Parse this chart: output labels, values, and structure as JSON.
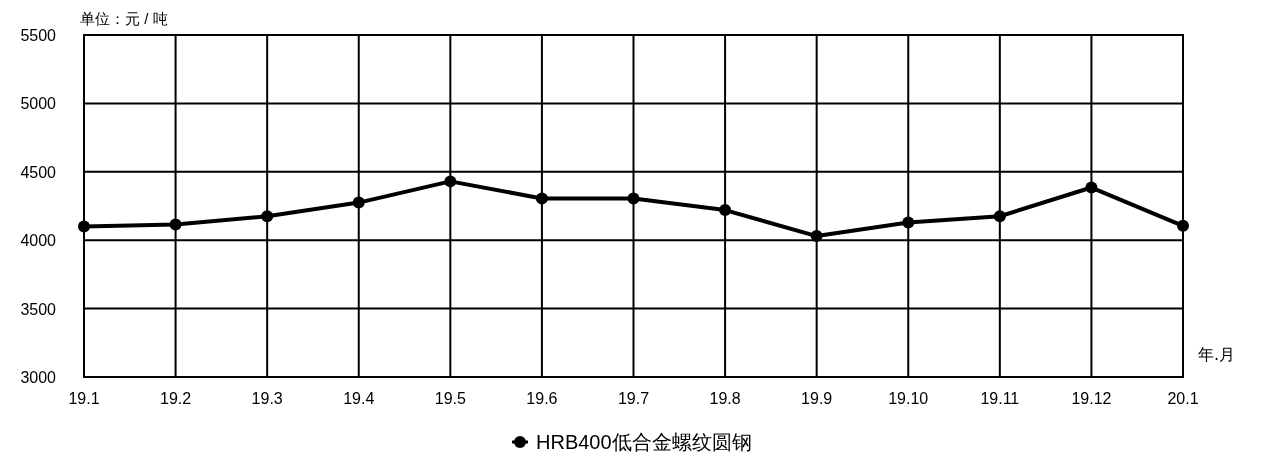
{
  "chart_data": {
    "type": "line",
    "ylabel": "单位：元 / 吨",
    "xlabel": "年.月",
    "categories": [
      "19.1",
      "19.2",
      "19.3",
      "19.4",
      "19.5",
      "19.6",
      "19.7",
      "19.8",
      "19.9",
      "19.10",
      "19.11",
      "19.12",
      "20.1"
    ],
    "series": [
      {
        "name": "HRB400低合金螺纹圆钢",
        "color": "#000000",
        "values": [
          4100,
          4115,
          4175,
          4275,
          4430,
          4305,
          4305,
          4220,
          4030,
          4130,
          4175,
          4385,
          4105
        ]
      }
    ],
    "ylim": [
      3000,
      5500
    ],
    "yticks": [
      3000,
      3500,
      4000,
      4500,
      5000,
      5500
    ],
    "grid": true,
    "legend": "bottom",
    "marker": "circle",
    "line_style": "solid"
  }
}
